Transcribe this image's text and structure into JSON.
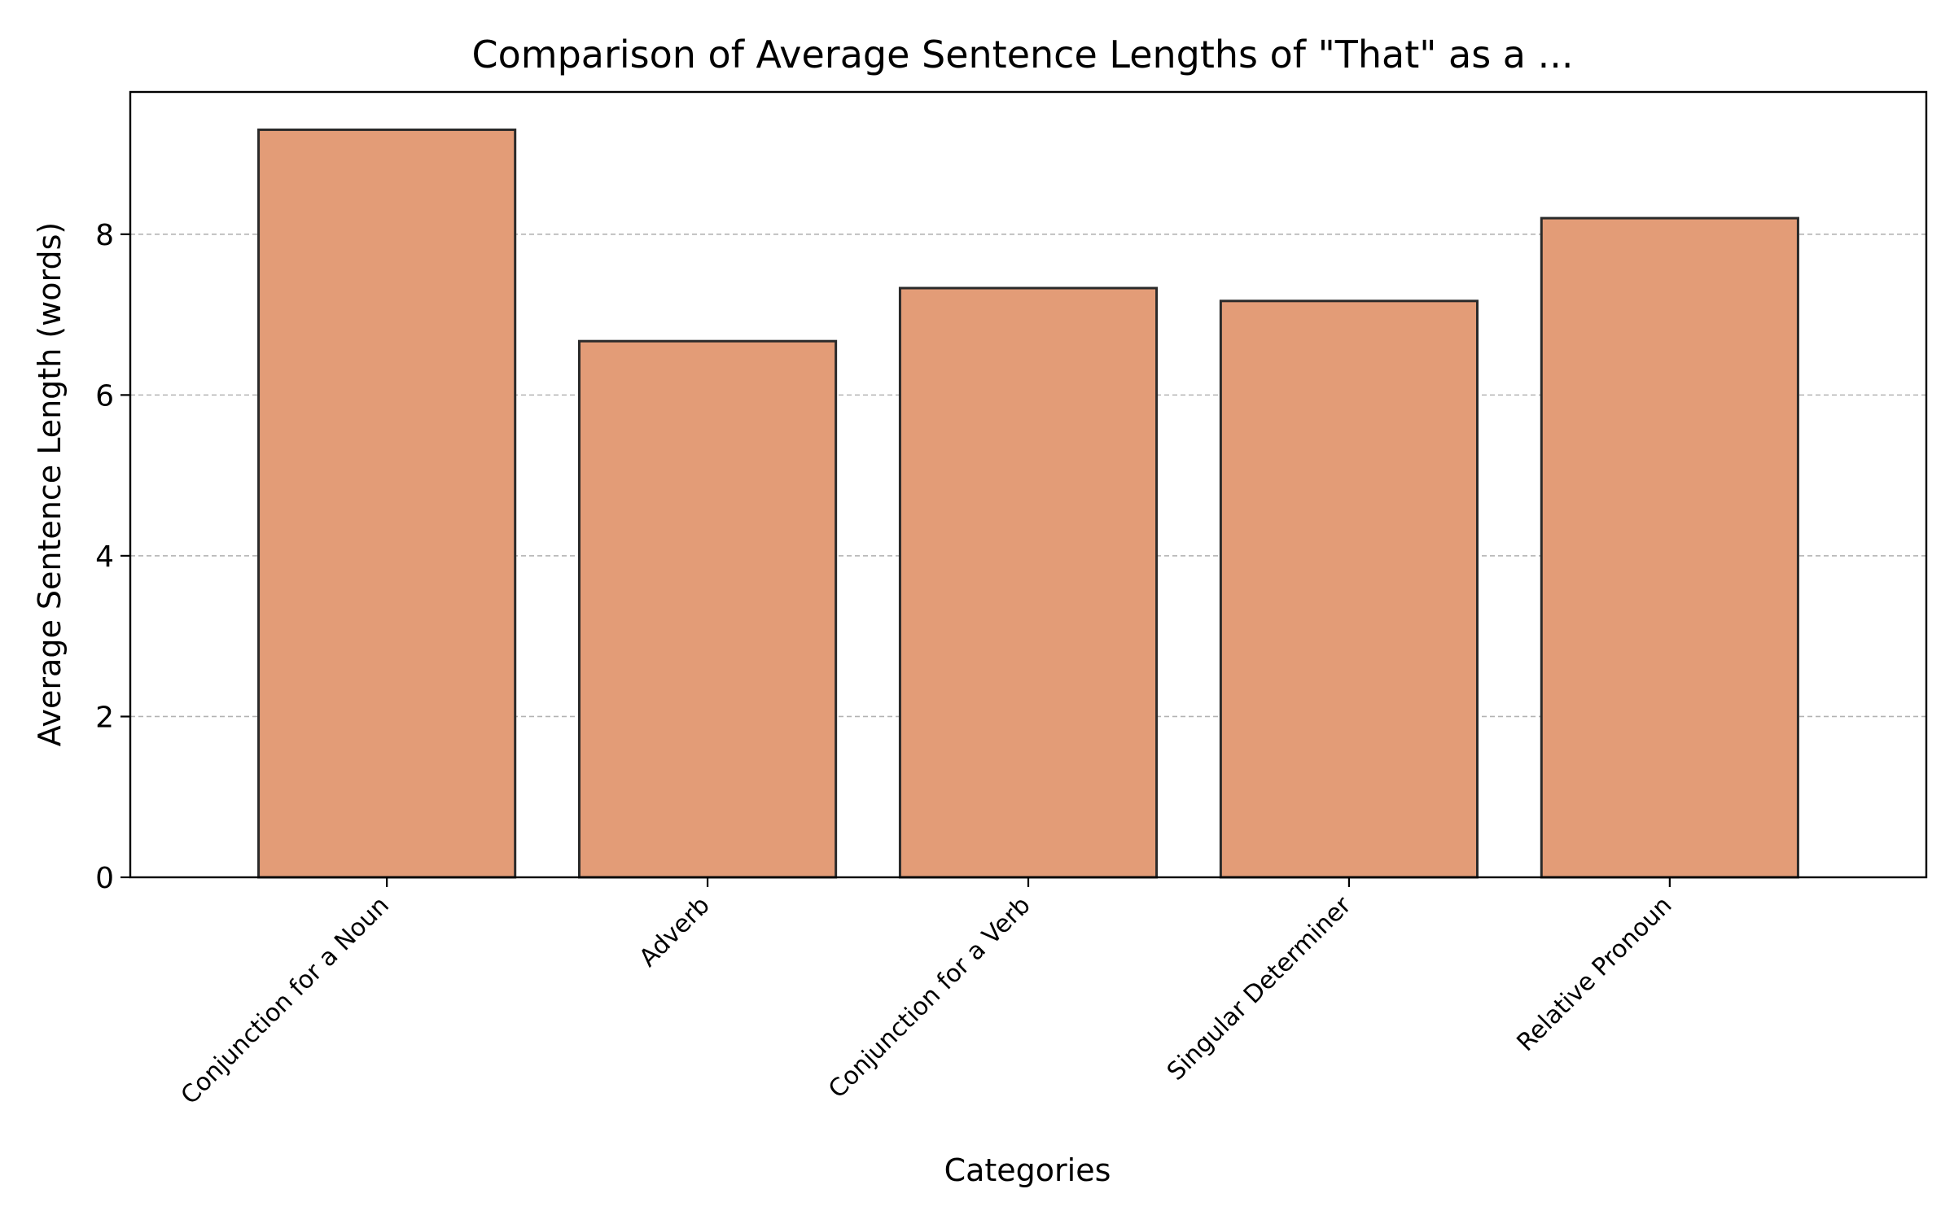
{
  "chart_data": {
    "type": "bar",
    "title": "Comparison of Average Sentence Lengths of \"That\" as a ...",
    "xlabel": "Categories",
    "ylabel": "Average Sentence Length (words)",
    "categories": [
      "Conjunction for a Noun",
      "Adverb",
      "Conjunction for a Verb",
      "Singular Determiner",
      "Relative Pronoun"
    ],
    "values": [
      9.3,
      6.67,
      7.33,
      7.17,
      8.2
    ],
    "ylim": [
      0,
      9.77
    ],
    "yticks": [
      0,
      2,
      4,
      6,
      8
    ],
    "grid": "y-dashed",
    "colors": {
      "bar_fill": "#e39c77",
      "bar_edge": "#2a2a2a",
      "grid": "#b3b3b3",
      "axis": "#000000"
    }
  }
}
